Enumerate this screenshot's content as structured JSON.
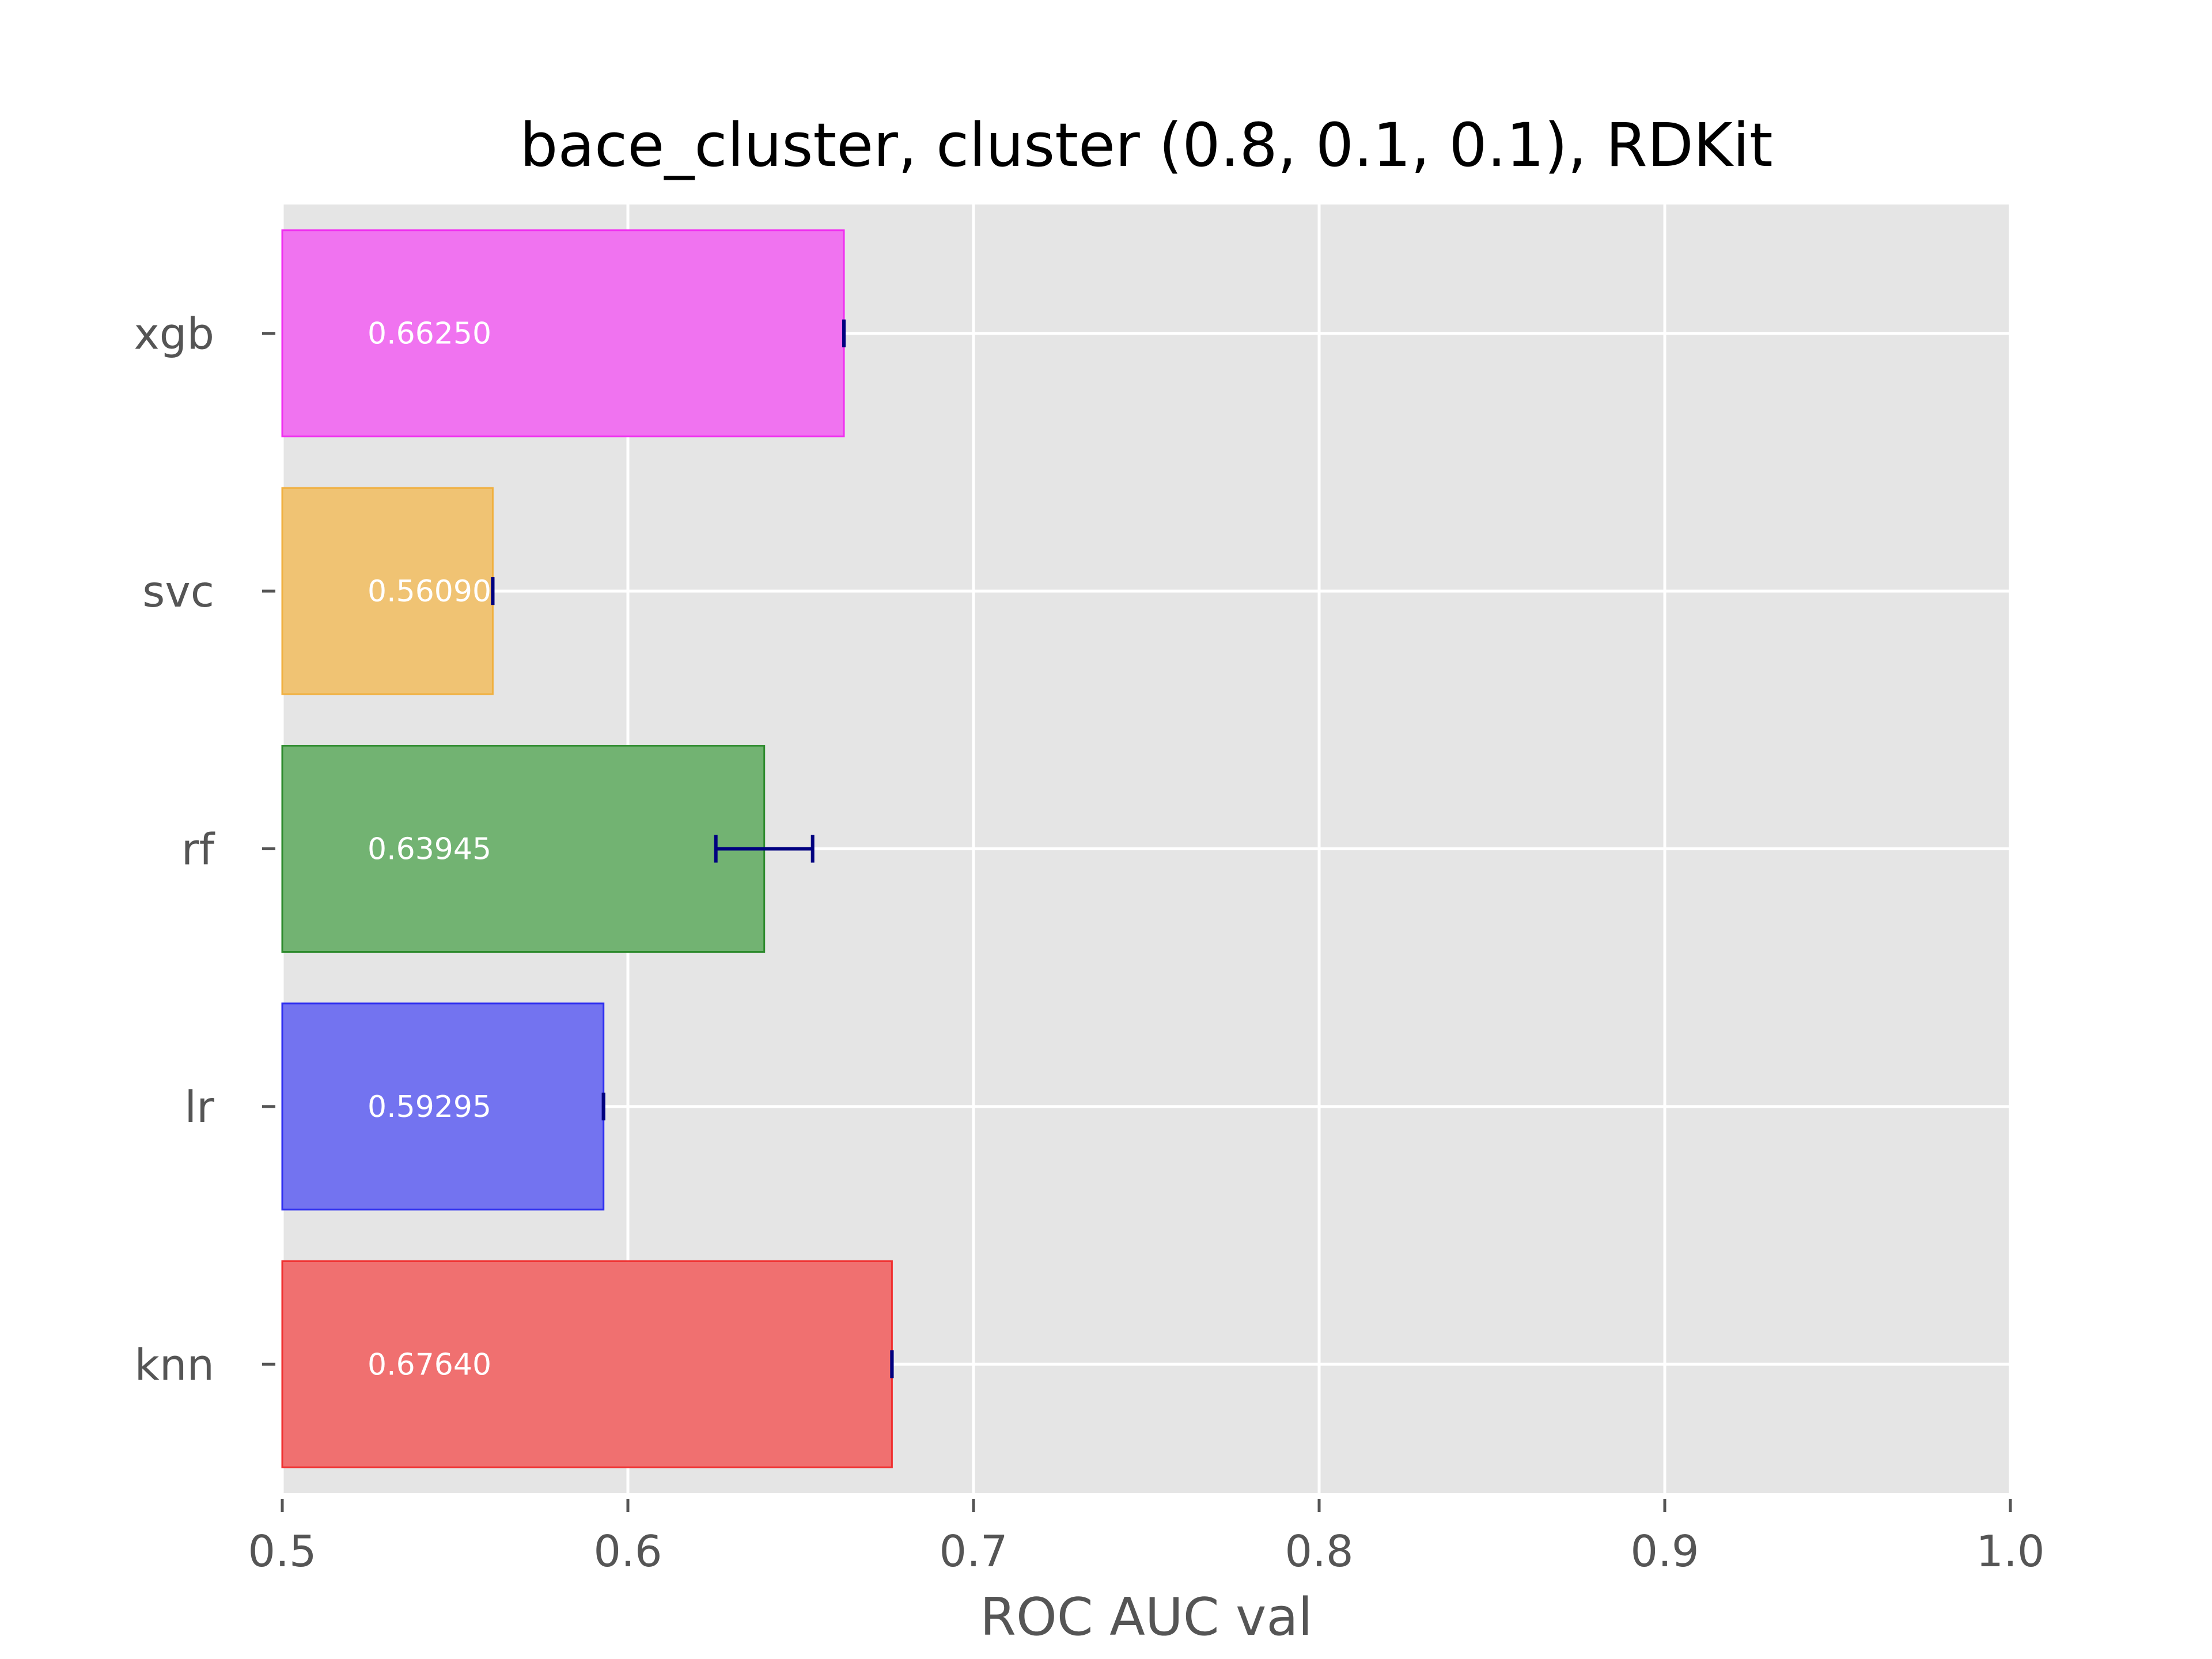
{
  "chart_data": {
    "type": "bar",
    "orientation": "horizontal",
    "title": "bace_cluster, cluster (0.8, 0.1, 0.1), RDKit",
    "xlabel": "ROC AUC val",
    "ylabel": "",
    "xlim": [
      0.5,
      1.0
    ],
    "xticks": [
      "0.5",
      "0.6",
      "0.7",
      "0.8",
      "0.9",
      "1.0"
    ],
    "grid": true,
    "categories": [
      "knn",
      "lr",
      "rf",
      "svc",
      "xgb"
    ],
    "values": [
      0.6764,
      0.59295,
      0.63945,
      0.5609,
      0.6625
    ],
    "errors": [
      0.0,
      0.0,
      0.014,
      0.0,
      0.0
    ],
    "value_labels": [
      "0.67640",
      "0.59295",
      "0.63945",
      "0.56090",
      "0.66250"
    ],
    "colors": [
      "#f07070",
      "#7373f0",
      "#72b372",
      "#f0c373",
      "#f073f0"
    ],
    "edge_colors": [
      "#f03030",
      "#3030f0",
      "#2e8b2e",
      "#f0b040",
      "#f030f0"
    ],
    "error_color": "#000080",
    "background_color": "#e5e5e5"
  }
}
